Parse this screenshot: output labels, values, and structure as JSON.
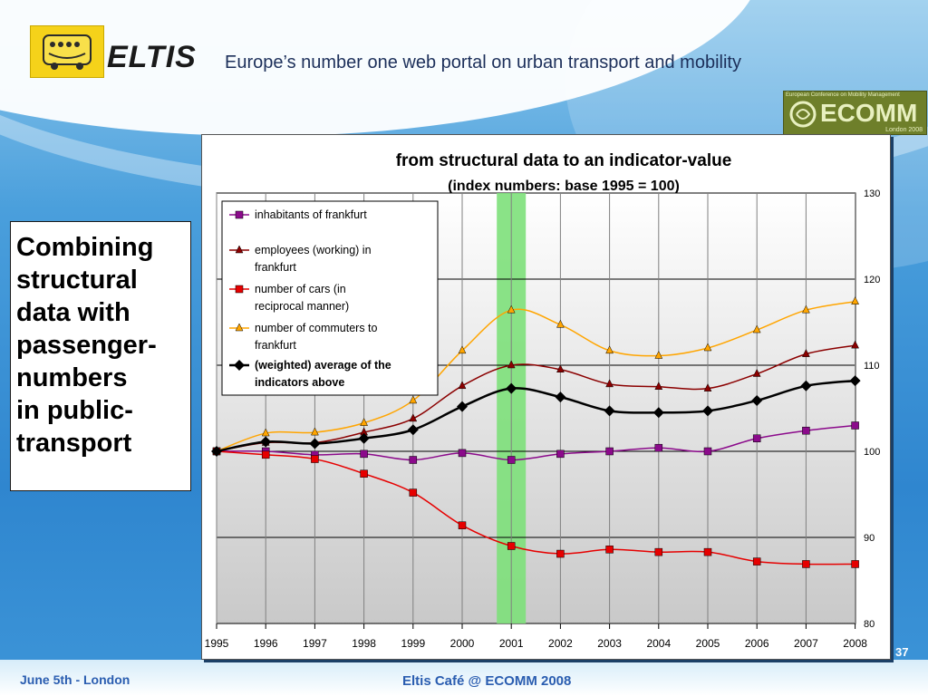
{
  "header": {
    "brand": "ELTIS",
    "tagline": "Europe’s number one web portal on urban transport and mobility"
  },
  "ecomm_logo": {
    "name": "ECOMM",
    "small_text": "European Conference on Mobility Management",
    "city": "London 2008"
  },
  "side_text": "Combining\nstructural\ndata with\npassenger-\nnumbers\nin public-\ntransport",
  "footer": {
    "left": "June 5th - London",
    "center": "Eltis Café @ ECOMM 2008",
    "page": "37"
  },
  "colors": {
    "highlight": "#7de07a",
    "plot_bg_top": "#ffffff",
    "plot_bg_bottom": "#c9c9c9"
  },
  "chart_data": {
    "type": "line",
    "title": "from structural data to an indicator-value",
    "subtitle": "(index numbers: base 1995 = 100)",
    "x": [
      "1995",
      "1996",
      "1997",
      "1998",
      "1999",
      "2000",
      "2001",
      "2002",
      "2003",
      "2004",
      "2005",
      "2006",
      "2007",
      "2008"
    ],
    "ylim": [
      80,
      130
    ],
    "yticks": [
      80,
      90,
      100,
      110,
      120,
      130
    ],
    "y_axis_side": "right",
    "highlight_category": "2001",
    "legend_position": "top-left",
    "series": [
      {
        "name": "inhabitants of frankfurt",
        "color": "#8b0a8b",
        "marker": "square",
        "values": [
          100,
          100,
          99.6,
          99.7,
          99,
          99.8,
          99,
          99.7,
          100,
          100.4,
          100,
          101.5,
          102.4,
          103
        ]
      },
      {
        "name": "employees (working) in frankfurt",
        "color": "#8b0000",
        "marker": "triangle",
        "values": [
          100,
          101,
          101,
          102.2,
          103.8,
          107.6,
          110,
          109.5,
          107.8,
          107.5,
          107.3,
          109,
          111.3,
          112.3
        ]
      },
      {
        "name": "number of cars (in reciprocal manner)",
        "color": "#e60000",
        "marker": "square",
        "values": [
          100,
          99.6,
          99.1,
          97.4,
          95.2,
          91.4,
          89,
          88.1,
          88.6,
          88.3,
          88.3,
          87.2,
          86.9,
          86.9
        ]
      },
      {
        "name": "number of commuters to frankfurt",
        "color": "#ffa500",
        "marker": "triangle",
        "values": [
          100,
          102.1,
          102.2,
          103.3,
          105.9,
          111.7,
          116.4,
          114.7,
          111.7,
          111.1,
          112,
          114.1,
          116.4,
          117.4
        ]
      },
      {
        "name": "(weighted) average of the indicators above",
        "color": "#000000",
        "marker": "diamond",
        "values": [
          100,
          101.1,
          100.9,
          101.5,
          102.5,
          105.2,
          107.3,
          106.3,
          104.7,
          104.5,
          104.7,
          105.9,
          107.6,
          108.2
        ]
      }
    ]
  }
}
